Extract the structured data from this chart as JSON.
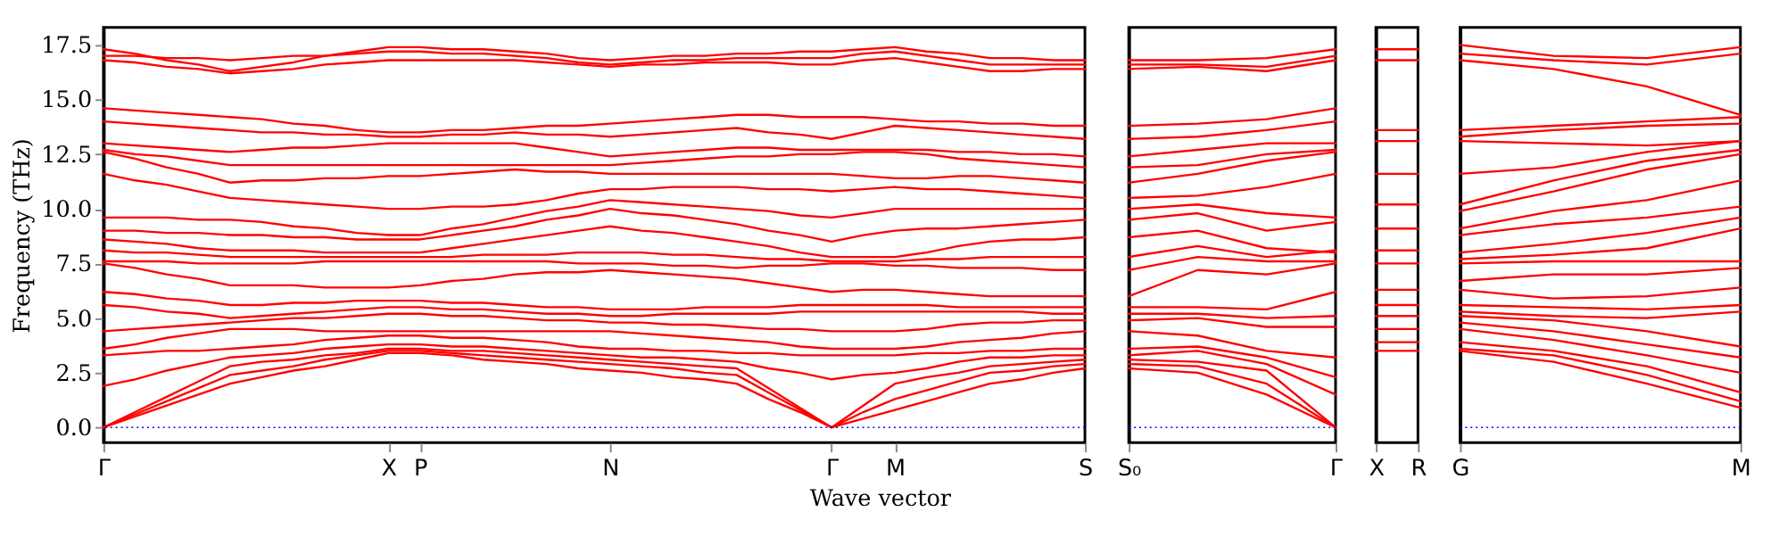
{
  "chart_data": [
    {
      "type": "line",
      "ylabel": "Frequency (THz)",
      "xlabel": "Wave vector",
      "categories": [
        "Γ",
        null,
        null,
        null,
        null,
        null,
        null,
        null,
        null,
        "X",
        "P",
        null,
        null,
        null,
        null,
        null,
        "N",
        null,
        null,
        null,
        null,
        null,
        null,
        "Γ",
        null,
        "M",
        null,
        null,
        null,
        null,
        null,
        "S"
      ],
      "ylim": [
        -0.7,
        18.3
      ],
      "yticks": [
        {
          "value": 0,
          "label": "0.0"
        },
        2.5,
        {
          "value": 5,
          "label": "5.0"
        },
        7.5,
        {
          "value": 10,
          "label": "10.0"
        },
        12.5,
        {
          "value": 15,
          "label": "15.0"
        },
        17.5
      ],
      "ref_lines": [
        {
          "axis": "y",
          "value": 0,
          "color": "#0000ff",
          "line_style": "dotted"
        }
      ],
      "series": [
        {
          "color": "#ff0000",
          "values": [
            0,
            0.5,
            1.0,
            1.5,
            2.0,
            2.3,
            2.6,
            2.8,
            3.1,
            3.4,
            3.4,
            3.3,
            3.1,
            3.0,
            2.9,
            2.7,
            2.6,
            2.5,
            2.3,
            2.2,
            2.0,
            1.3,
            0.7,
            0,
            0.4,
            0.8,
            1.2,
            1.6,
            2.0,
            2.2,
            2.5,
            2.7
          ]
        },
        {
          "color": "#ff0000",
          "values": [
            0,
            0.6,
            1.2,
            1.8,
            2.4,
            2.6,
            2.8,
            3.1,
            3.3,
            3.5,
            3.5,
            3.4,
            3.3,
            3.2,
            3.1,
            3.0,
            2.9,
            2.8,
            2.7,
            2.5,
            2.4,
            1.6,
            0.8,
            0,
            0.7,
            1.3,
            1.7,
            2.1,
            2.5,
            2.6,
            2.8,
            2.9
          ]
        },
        {
          "color": "#ff0000",
          "values": [
            0,
            0.7,
            1.4,
            2.1,
            2.8,
            3.0,
            3.1,
            3.3,
            3.4,
            3.6,
            3.6,
            3.5,
            3.5,
            3.4,
            3.3,
            3.2,
            3.1,
            3.0,
            2.9,
            2.8,
            2.7,
            1.8,
            0.9,
            0,
            1.0,
            2.0,
            2.3,
            2.5,
            2.8,
            2.9,
            3.0,
            3.1
          ]
        },
        {
          "color": "#ff0000",
          "values": [
            1.9,
            2.2,
            2.6,
            2.9,
            3.2,
            3.3,
            3.4,
            3.6,
            3.7,
            3.8,
            3.8,
            3.7,
            3.7,
            3.6,
            3.5,
            3.4,
            3.3,
            3.2,
            3.2,
            3.1,
            3.0,
            2.7,
            2.5,
            2.2,
            2.4,
            2.5,
            2.7,
            3.0,
            3.2,
            3.2,
            3.3,
            3.3
          ]
        },
        {
          "color": "#ff0000",
          "values": [
            3.3,
            3.4,
            3.5,
            3.5,
            3.6,
            3.7,
            3.8,
            4.0,
            4.1,
            4.2,
            4.2,
            4.1,
            4.1,
            4.0,
            3.9,
            3.7,
            3.6,
            3.6,
            3.5,
            3.5,
            3.4,
            3.4,
            3.3,
            3.3,
            3.3,
            3.3,
            3.4,
            3.4,
            3.5,
            3.5,
            3.6,
            3.6
          ]
        },
        {
          "color": "#ff0000",
          "values": [
            3.6,
            3.8,
            4.1,
            4.3,
            4.5,
            4.5,
            4.5,
            4.4,
            4.4,
            4.4,
            4.4,
            4.4,
            4.4,
            4.4,
            4.4,
            4.4,
            4.4,
            4.3,
            4.2,
            4.1,
            4.0,
            3.9,
            3.7,
            3.6,
            3.6,
            3.6,
            3.7,
            3.9,
            4.0,
            4.1,
            4.3,
            4.4
          ]
        },
        {
          "color": "#ff0000",
          "values": [
            4.4,
            4.5,
            4.6,
            4.7,
            4.8,
            4.9,
            5.0,
            5.0,
            5.1,
            5.2,
            5.2,
            5.1,
            5.1,
            5.0,
            4.9,
            4.9,
            4.8,
            4.8,
            4.7,
            4.7,
            4.6,
            4.5,
            4.5,
            4.4,
            4.4,
            4.4,
            4.5,
            4.7,
            4.8,
            4.8,
            4.9,
            4.9
          ]
        },
        {
          "color": "#ff0000",
          "values": [
            5.6,
            5.5,
            5.3,
            5.2,
            5.0,
            5.1,
            5.2,
            5.3,
            5.4,
            5.5,
            5.5,
            5.4,
            5.4,
            5.3,
            5.2,
            5.2,
            5.1,
            5.1,
            5.2,
            5.2,
            5.2,
            5.2,
            5.3,
            5.3,
            5.3,
            5.3,
            5.3,
            5.3,
            5.3,
            5.3,
            5.2,
            5.2
          ]
        },
        {
          "color": "#ff0000",
          "values": [
            6.2,
            6.1,
            5.9,
            5.8,
            5.6,
            5.6,
            5.7,
            5.7,
            5.8,
            5.8,
            5.8,
            5.7,
            5.7,
            5.6,
            5.5,
            5.5,
            5.4,
            5.4,
            5.4,
            5.5,
            5.5,
            5.5,
            5.6,
            5.6,
            5.6,
            5.6,
            5.6,
            5.5,
            5.5,
            5.5,
            5.5,
            5.5
          ]
        },
        {
          "color": "#ff0000",
          "values": [
            7.5,
            7.3,
            7.0,
            6.8,
            6.5,
            6.5,
            6.5,
            6.4,
            6.4,
            6.4,
            6.5,
            6.7,
            6.8,
            7.0,
            7.1,
            7.1,
            7.2,
            7.1,
            7.0,
            6.9,
            6.8,
            6.6,
            6.4,
            6.2,
            6.3,
            6.3,
            6.2,
            6.1,
            6.0,
            6.0,
            6.0,
            6.0
          ]
        },
        {
          "color": "#ff0000",
          "values": [
            7.6,
            7.6,
            7.6,
            7.5,
            7.5,
            7.5,
            7.5,
            7.6,
            7.6,
            7.6,
            7.6,
            7.6,
            7.6,
            7.6,
            7.6,
            7.5,
            7.5,
            7.5,
            7.4,
            7.4,
            7.3,
            7.4,
            7.4,
            7.5,
            7.5,
            7.4,
            7.4,
            7.3,
            7.3,
            7.3,
            7.2,
            7.2
          ]
        },
        {
          "color": "#ff0000",
          "values": [
            8.1,
            8.0,
            8.0,
            7.9,
            7.8,
            7.8,
            7.8,
            7.8,
            7.8,
            7.8,
            7.8,
            7.8,
            7.9,
            7.9,
            7.9,
            8.0,
            8.0,
            8.0,
            7.9,
            7.9,
            7.8,
            7.7,
            7.7,
            7.6,
            7.6,
            7.6,
            7.7,
            7.7,
            7.8,
            7.8,
            7.8,
            7.8
          ]
        },
        {
          "color": "#ff0000",
          "values": [
            8.6,
            8.5,
            8.4,
            8.2,
            8.1,
            8.1,
            8.1,
            8.0,
            8.0,
            8.0,
            8.0,
            8.2,
            8.4,
            8.6,
            8.8,
            9.0,
            9.2,
            9.0,
            8.9,
            8.7,
            8.5,
            8.3,
            8.0,
            7.8,
            7.8,
            7.8,
            8.0,
            8.3,
            8.5,
            8.6,
            8.6,
            8.7
          ]
        },
        {
          "color": "#ff0000",
          "values": [
            9.0,
            9.0,
            8.9,
            8.9,
            8.8,
            8.8,
            8.7,
            8.7,
            8.6,
            8.6,
            8.6,
            8.8,
            9.0,
            9.2,
            9.5,
            9.7,
            10.0,
            9.8,
            9.7,
            9.5,
            9.3,
            9.0,
            8.8,
            8.5,
            8.8,
            9.0,
            9.1,
            9.1,
            9.2,
            9.3,
            9.4,
            9.5
          ]
        },
        {
          "color": "#ff0000",
          "values": [
            9.6,
            9.6,
            9.6,
            9.5,
            9.5,
            9.4,
            9.2,
            9.1,
            8.9,
            8.8,
            8.8,
            9.1,
            9.3,
            9.6,
            9.9,
            10.1,
            10.4,
            10.3,
            10.2,
            10.1,
            10.0,
            9.9,
            9.7,
            9.6,
            9.8,
            10.0,
            10.0,
            10.0,
            10.0,
            10.0,
            10.0,
            10.0
          ]
        },
        {
          "color": "#ff0000",
          "values": [
            11.6,
            11.3,
            11.1,
            10.8,
            10.5,
            10.4,
            10.3,
            10.2,
            10.1,
            10.0,
            10.0,
            10.1,
            10.1,
            10.2,
            10.4,
            10.7,
            10.9,
            10.9,
            11.0,
            11.0,
            11.0,
            10.9,
            10.9,
            10.8,
            10.9,
            11.0,
            10.9,
            10.9,
            10.8,
            10.7,
            10.6,
            10.5
          ]
        },
        {
          "color": "#ff0000",
          "values": [
            12.6,
            12.3,
            11.9,
            11.6,
            11.2,
            11.3,
            11.3,
            11.4,
            11.4,
            11.5,
            11.5,
            11.6,
            11.7,
            11.8,
            11.7,
            11.7,
            11.6,
            11.6,
            11.6,
            11.6,
            11.6,
            11.6,
            11.6,
            11.6,
            11.5,
            11.4,
            11.4,
            11.5,
            11.5,
            11.4,
            11.3,
            11.2
          ]
        },
        {
          "color": "#ff0000",
          "values": [
            12.7,
            12.5,
            12.4,
            12.2,
            12.0,
            12.0,
            12.0,
            12.0,
            12.0,
            12.0,
            12.0,
            12.0,
            12.0,
            12.0,
            12.0,
            12.0,
            12.0,
            12.1,
            12.2,
            12.3,
            12.4,
            12.4,
            12.5,
            12.5,
            12.6,
            12.6,
            12.5,
            12.3,
            12.2,
            12.1,
            12.0,
            11.9
          ]
        },
        {
          "color": "#ff0000",
          "values": [
            13.0,
            12.9,
            12.8,
            12.7,
            12.6,
            12.7,
            12.8,
            12.8,
            12.9,
            13.0,
            13.0,
            13.0,
            13.0,
            13.0,
            12.8,
            12.6,
            12.4,
            12.5,
            12.6,
            12.7,
            12.8,
            12.8,
            12.7,
            12.7,
            12.7,
            12.7,
            12.7,
            12.6,
            12.6,
            12.5,
            12.5,
            12.4
          ]
        },
        {
          "color": "#ff0000",
          "values": [
            14.0,
            13.9,
            13.8,
            13.7,
            13.6,
            13.5,
            13.5,
            13.4,
            13.4,
            13.3,
            13.3,
            13.4,
            13.4,
            13.5,
            13.4,
            13.4,
            13.3,
            13.4,
            13.5,
            13.6,
            13.7,
            13.5,
            13.4,
            13.2,
            13.5,
            13.8,
            13.7,
            13.6,
            13.5,
            13.4,
            13.3,
            13.2
          ]
        },
        {
          "color": "#ff0000",
          "values": [
            14.6,
            14.5,
            14.4,
            14.3,
            14.2,
            14.1,
            13.9,
            13.8,
            13.6,
            13.5,
            13.5,
            13.6,
            13.6,
            13.7,
            13.8,
            13.8,
            13.9,
            14.0,
            14.1,
            14.2,
            14.3,
            14.3,
            14.2,
            14.2,
            14.2,
            14.1,
            14.0,
            14.0,
            13.9,
            13.9,
            13.8,
            13.8
          ]
        },
        {
          "color": "#ff0000",
          "values": [
            16.8,
            16.7,
            16.5,
            16.4,
            16.2,
            16.3,
            16.4,
            16.6,
            16.7,
            16.8,
            16.8,
            16.8,
            16.8,
            16.8,
            16.7,
            16.6,
            16.5,
            16.6,
            16.6,
            16.7,
            16.7,
            16.7,
            16.6,
            16.6,
            16.8,
            16.9,
            16.7,
            16.5,
            16.3,
            16.3,
            16.4,
            16.4
          ]
        },
        {
          "color": "#ff0000",
          "values": [
            17.0,
            17.0,
            16.9,
            16.9,
            16.8,
            16.9,
            17.0,
            17.0,
            17.1,
            17.2,
            17.2,
            17.1,
            17.1,
            17.0,
            16.9,
            16.7,
            16.6,
            16.7,
            16.8,
            16.8,
            16.9,
            16.9,
            16.9,
            16.9,
            17.1,
            17.2,
            17.0,
            16.8,
            16.6,
            16.6,
            16.6,
            16.6
          ]
        },
        {
          "color": "#ff0000",
          "values": [
            17.3,
            17.1,
            16.8,
            16.6,
            16.3,
            16.5,
            16.7,
            17.0,
            17.2,
            17.4,
            17.4,
            17.3,
            17.3,
            17.2,
            17.1,
            16.9,
            16.8,
            16.9,
            17.0,
            17.0,
            17.1,
            17.1,
            17.2,
            17.2,
            17.3,
            17.4,
            17.2,
            17.1,
            16.9,
            16.9,
            16.8,
            16.8
          ]
        }
      ]
    },
    {
      "type": "line",
      "tick_labels": "x",
      "categories": [
        "S₀",
        null,
        null,
        "Γ"
      ],
      "ylim": [
        -0.7,
        18.3
      ],
      "ref_lines": [
        {
          "axis": "y",
          "value": 0,
          "color": "#0000ff",
          "line_style": "dotted"
        }
      ],
      "series": [
        {
          "color": "#ff0000",
          "values": [
            2.7,
            2.5,
            1.5,
            0
          ]
        },
        {
          "color": "#ff0000",
          "values": [
            2.9,
            2.8,
            2.0,
            0
          ]
        },
        {
          "color": "#ff0000",
          "values": [
            3.1,
            3.0,
            2.6,
            0
          ]
        },
        {
          "color": "#ff0000",
          "values": [
            3.3,
            3.5,
            2.9,
            1.5
          ]
        },
        {
          "color": "#ff0000",
          "values": [
            3.6,
            3.7,
            3.2,
            2.3
          ]
        },
        {
          "color": "#ff0000",
          "values": [
            4.4,
            4.2,
            3.5,
            3.2
          ]
        },
        {
          "color": "#ff0000",
          "values": [
            4.9,
            5.0,
            4.6,
            4.6
          ]
        },
        {
          "color": "#ff0000",
          "values": [
            5.2,
            5.2,
            5.0,
            5.1
          ]
        },
        {
          "color": "#ff0000",
          "values": [
            5.5,
            5.5,
            5.4,
            6.2
          ]
        },
        {
          "color": "#ff0000",
          "values": [
            6.0,
            7.2,
            7.0,
            7.5
          ]
        },
        {
          "color": "#ff0000",
          "values": [
            7.2,
            7.8,
            7.6,
            7.6
          ]
        },
        {
          "color": "#ff0000",
          "values": [
            7.8,
            8.3,
            7.8,
            8.1
          ]
        },
        {
          "color": "#ff0000",
          "values": [
            8.7,
            9.0,
            8.2,
            8.0
          ]
        },
        {
          "color": "#ff0000",
          "values": [
            9.5,
            9.8,
            9.0,
            9.4
          ]
        },
        {
          "color": "#ff0000",
          "values": [
            10.0,
            10.2,
            9.8,
            9.6
          ]
        },
        {
          "color": "#ff0000",
          "values": [
            10.5,
            10.6,
            11.0,
            11.6
          ]
        },
        {
          "color": "#ff0000",
          "values": [
            11.2,
            11.6,
            12.2,
            12.6
          ]
        },
        {
          "color": "#ff0000",
          "values": [
            11.9,
            12.0,
            12.5,
            12.7
          ]
        },
        {
          "color": "#ff0000",
          "values": [
            12.4,
            12.7,
            13.0,
            13.0
          ]
        },
        {
          "color": "#ff0000",
          "values": [
            13.2,
            13.3,
            13.6,
            14.0
          ]
        },
        {
          "color": "#ff0000",
          "values": [
            13.8,
            13.9,
            14.1,
            14.6
          ]
        },
        {
          "color": "#ff0000",
          "values": [
            16.4,
            16.5,
            16.3,
            16.8
          ]
        },
        {
          "color": "#ff0000",
          "values": [
            16.6,
            16.6,
            16.5,
            17.0
          ]
        },
        {
          "color": "#ff0000",
          "values": [
            16.8,
            16.8,
            16.9,
            17.3
          ]
        }
      ]
    },
    {
      "type": "line",
      "tick_labels": "x",
      "categories": [
        "X",
        "R"
      ],
      "ylim": [
        -0.7,
        18.3
      ],
      "series": [
        {
          "color": "#ff0000",
          "values": [
            3.5,
            3.5
          ]
        },
        {
          "color": "#ff0000",
          "values": [
            3.9,
            3.9
          ]
        },
        {
          "color": "#ff0000",
          "values": [
            4.5,
            4.5
          ]
        },
        {
          "color": "#ff0000",
          "values": [
            5.1,
            5.1
          ]
        },
        {
          "color": "#ff0000",
          "values": [
            5.6,
            5.6
          ]
        },
        {
          "color": "#ff0000",
          "values": [
            6.3,
            6.3
          ]
        },
        {
          "color": "#ff0000",
          "values": [
            7.5,
            7.5
          ]
        },
        {
          "color": "#ff0000",
          "values": [
            8.1,
            8.1
          ]
        },
        {
          "color": "#ff0000",
          "values": [
            9.1,
            9.1
          ]
        },
        {
          "color": "#ff0000",
          "values": [
            10.2,
            10.2
          ]
        },
        {
          "color": "#ff0000",
          "values": [
            11.6,
            11.6
          ]
        },
        {
          "color": "#ff0000",
          "values": [
            13.1,
            13.1
          ]
        },
        {
          "color": "#ff0000",
          "values": [
            13.6,
            13.6
          ]
        },
        {
          "color": "#ff0000",
          "values": [
            16.8,
            16.8
          ]
        },
        {
          "color": "#ff0000",
          "values": [
            17.3,
            17.3
          ]
        }
      ]
    },
    {
      "type": "line",
      "tick_labels": "x",
      "categories": [
        "G",
        null,
        null,
        "M"
      ],
      "ylim": [
        -0.7,
        18.3
      ],
      "ref_lines": [
        {
          "axis": "y",
          "value": 0,
          "color": "#0000ff",
          "line_style": "dotted"
        }
      ],
      "series": [
        {
          "color": "#ff0000",
          "values": [
            3.5,
            3.0,
            2.0,
            0.9
          ]
        },
        {
          "color": "#ff0000",
          "values": [
            3.6,
            3.3,
            2.4,
            1.2
          ]
        },
        {
          "color": "#ff0000",
          "values": [
            3.9,
            3.5,
            2.8,
            1.6
          ]
        },
        {
          "color": "#ff0000",
          "values": [
            4.5,
            4.0,
            3.3,
            2.5
          ]
        },
        {
          "color": "#ff0000",
          "values": [
            4.8,
            4.4,
            3.8,
            3.2
          ]
        },
        {
          "color": "#ff0000",
          "values": [
            5.1,
            4.9,
            4.4,
            3.7
          ]
        },
        {
          "color": "#ff0000",
          "values": [
            5.3,
            5.1,
            5.0,
            5.3
          ]
        },
        {
          "color": "#ff0000",
          "values": [
            5.6,
            5.5,
            5.4,
            5.6
          ]
        },
        {
          "color": "#ff0000",
          "values": [
            6.3,
            5.9,
            6.0,
            6.4
          ]
        },
        {
          "color": "#ff0000",
          "values": [
            6.7,
            7.0,
            7.0,
            7.3
          ]
        },
        {
          "color": "#ff0000",
          "values": [
            7.5,
            7.6,
            7.6,
            7.6
          ]
        },
        {
          "color": "#ff0000",
          "values": [
            7.7,
            7.9,
            8.2,
            9.1
          ]
        },
        {
          "color": "#ff0000",
          "values": [
            8.0,
            8.4,
            8.9,
            9.6
          ]
        },
        {
          "color": "#ff0000",
          "values": [
            8.8,
            9.3,
            9.6,
            10.1
          ]
        },
        {
          "color": "#ff0000",
          "values": [
            9.1,
            9.9,
            10.4,
            11.3
          ]
        },
        {
          "color": "#ff0000",
          "values": [
            9.9,
            10.8,
            11.8,
            12.5
          ]
        },
        {
          "color": "#ff0000",
          "values": [
            10.2,
            11.3,
            12.2,
            12.7
          ]
        },
        {
          "color": "#ff0000",
          "values": [
            11.6,
            11.9,
            12.6,
            13.1
          ]
        },
        {
          "color": "#ff0000",
          "values": [
            13.1,
            13.0,
            12.9,
            13.1
          ]
        },
        {
          "color": "#ff0000",
          "values": [
            13.3,
            13.6,
            13.8,
            13.9
          ]
        },
        {
          "color": "#ff0000",
          "values": [
            13.6,
            13.8,
            14.0,
            14.2
          ]
        },
        {
          "color": "#ff0000",
          "values": [
            16.8,
            16.4,
            15.6,
            14.3
          ]
        },
        {
          "color": "#ff0000",
          "values": [
            17.1,
            16.8,
            16.6,
            17.1
          ]
        },
        {
          "color": "#ff0000",
          "values": [
            17.5,
            17.0,
            16.9,
            17.4
          ]
        }
      ]
    }
  ]
}
